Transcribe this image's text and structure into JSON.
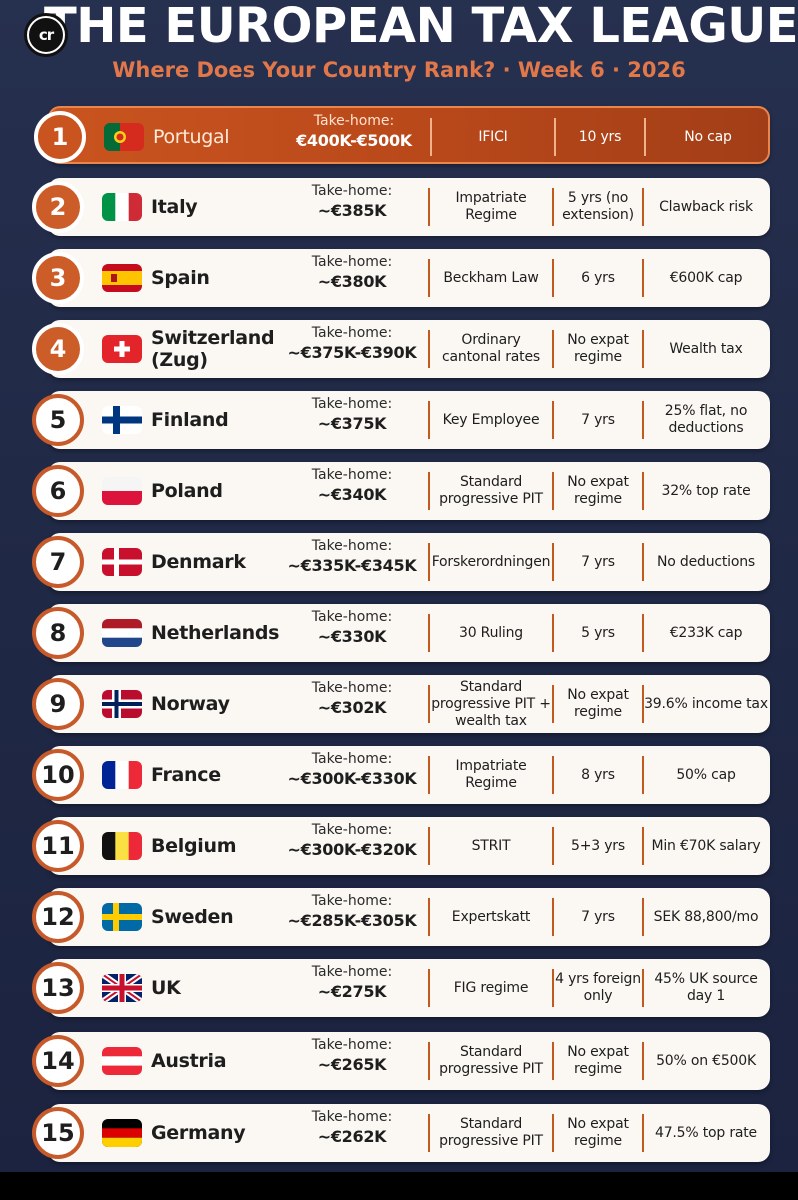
{
  "header": {
    "logo": "cr",
    "title": "THE EUROPEAN TAX LEAGUE",
    "subtitle": "Where Does Your Country Rank? · Week 6 · 2026"
  },
  "colors": {
    "accent": "#c65a2a",
    "background": "#1f2844",
    "row": "#fbf8f4",
    "subtitle": "#e2784a"
  },
  "take_home_label": "Take-home:",
  "rows": [
    {
      "rank": "1",
      "country": "Portugal",
      "flag": "portugal-flag-icon",
      "take_home": "€400K-€500K",
      "regime": "IFICI",
      "duration": "10 yrs",
      "note": "No cap"
    },
    {
      "rank": "2",
      "country": "Italy",
      "flag": "italy-flag-icon",
      "take_home": "~€385K",
      "regime": "Impatriate Regime",
      "duration": "5 yrs (no extension)",
      "note": "Clawback risk"
    },
    {
      "rank": "3",
      "country": "Spain",
      "flag": "spain-flag-icon",
      "take_home": "~€380K",
      "regime": "Beckham Law",
      "duration": "6 yrs",
      "note": "€600K cap"
    },
    {
      "rank": "4",
      "country": "Switzerland (Zug)",
      "flag": "switzerland-flag-icon",
      "take_home": "~€375K-€390K",
      "regime": "Ordinary cantonal rates",
      "duration": "No expat regime",
      "note": "Wealth tax"
    },
    {
      "rank": "5",
      "country": "Finland",
      "flag": "finland-flag-icon",
      "take_home": "~€375K",
      "regime": "Key Employee",
      "duration": "7 yrs",
      "note": "25% flat, no deductions"
    },
    {
      "rank": "6",
      "country": "Poland",
      "flag": "poland-flag-icon",
      "take_home": "~€340K",
      "regime": "Standard progressive PIT",
      "duration": "No expat regime",
      "note": "32% top rate"
    },
    {
      "rank": "7",
      "country": "Denmark",
      "flag": "denmark-flag-icon",
      "take_home": "~€335K-€345K",
      "regime": "Forskerordningen",
      "duration": "7 yrs",
      "note": "No deductions"
    },
    {
      "rank": "8",
      "country": "Netherlands",
      "flag": "netherlands-flag-icon",
      "take_home": "~€330K",
      "regime": "30 Ruling",
      "duration": "5 yrs",
      "note": "€233K cap"
    },
    {
      "rank": "9",
      "country": "Norway",
      "flag": "norway-flag-icon",
      "take_home": "~€302K",
      "regime": "Standard progressive PIT + wealth tax",
      "duration": "No expat regime",
      "note": "39.6% income tax"
    },
    {
      "rank": "10",
      "country": "France",
      "flag": "france-flag-icon",
      "take_home": "~€300K-€330K",
      "regime": "Impatriate Regime",
      "duration": "8 yrs",
      "note": "50% cap"
    },
    {
      "rank": "11",
      "country": "Belgium",
      "flag": "belgium-flag-icon",
      "take_home": "~€300K-€320K",
      "regime": "STRIT",
      "duration": "5+3 yrs",
      "note": "Min €70K salary"
    },
    {
      "rank": "12",
      "country": "Sweden",
      "flag": "sweden-flag-icon",
      "take_home": "~€285K-€305K",
      "regime": "Expertskatt",
      "duration": "7 yrs",
      "note": "SEK 88,800/mo"
    },
    {
      "rank": "13",
      "country": "UK",
      "flag": "uk-flag-icon",
      "take_home": "~€275K",
      "regime": "FIG regime",
      "duration": "4 yrs foreign only",
      "note": "45% UK source day 1"
    },
    {
      "rank": "14",
      "country": "Austria",
      "flag": "austria-flag-icon",
      "take_home": "~€265K",
      "regime": "Standard progressive PIT",
      "duration": "No expat regime",
      "note": "50% on €500K"
    },
    {
      "rank": "15",
      "country": "Germany",
      "flag": "germany-flag-icon",
      "take_home": "~€262K",
      "regime": "Standard progressive PIT",
      "duration": "No expat regime",
      "note": "47.5% top rate"
    }
  ]
}
